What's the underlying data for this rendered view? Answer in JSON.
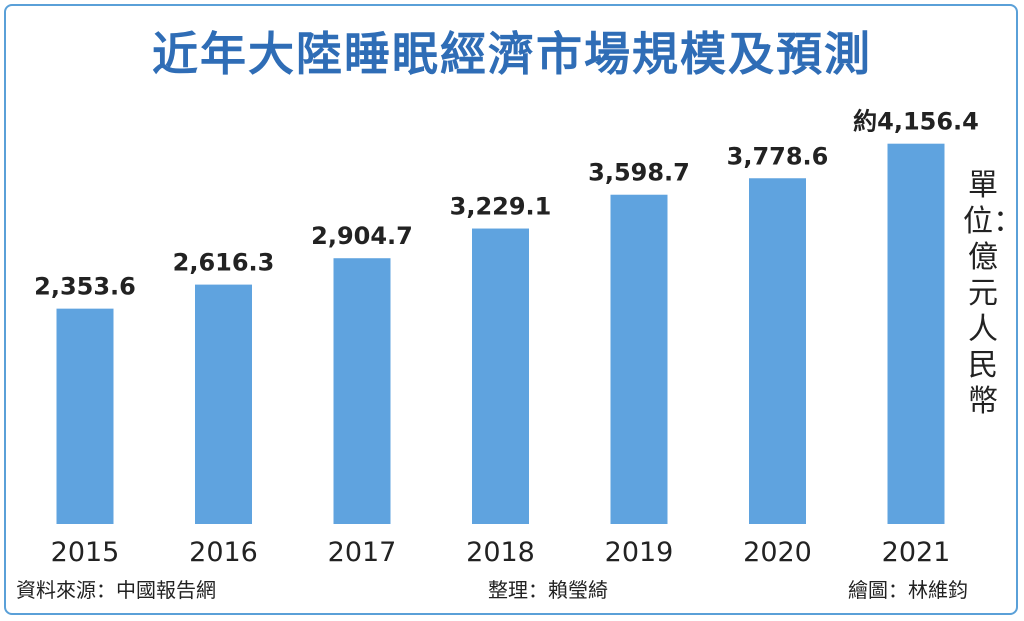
{
  "chart_data": {
    "type": "bar",
    "title": "近年大陸睡眠經濟市場規模及預測",
    "unit": "單位：億元人民幣",
    "categories": [
      "2015",
      "2016",
      "2017",
      "2018",
      "2019",
      "2020",
      "2021"
    ],
    "values": [
      2353.6,
      2616.3,
      2904.7,
      3229.1,
      3598.7,
      3778.6,
      4156.4
    ],
    "value_labels": [
      "2,353.6",
      "2,616.3",
      "2,904.7",
      "3,229.1",
      "3,598.7",
      "3,778.6",
      "約4,156.4"
    ],
    "bar_color": "#5fa3df",
    "title_color": "#2f6db6",
    "grid": false,
    "legend": "none"
  },
  "footer": {
    "source": "資料來源：中國報告網",
    "editor": "整理：賴瑩綺",
    "artist": "繪圖：林維鈞"
  }
}
